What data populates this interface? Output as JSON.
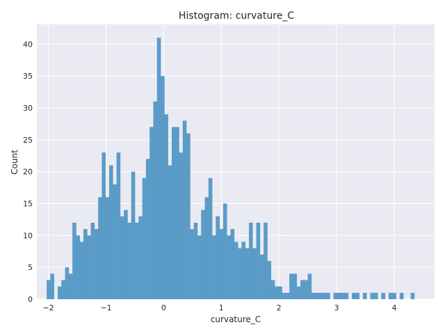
{
  "chart_data": {
    "type": "bar",
    "title": "Histogram: curvature_C",
    "xlabel": "curvature_C",
    "ylabel": "Count",
    "xlim": [
      -2.2,
      4.7
    ],
    "ylim": [
      0,
      43.1
    ],
    "xticks": [
      -2,
      -1,
      0,
      1,
      2,
      3,
      4
    ],
    "xtick_labels": [
      "−2",
      "−1",
      "0",
      "1",
      "2",
      "3",
      "4"
    ],
    "yticks": [
      0,
      5,
      10,
      15,
      20,
      25,
      30,
      35,
      40
    ],
    "ytick_labels": [
      "0",
      "5",
      "10",
      "15",
      "20",
      "25",
      "30",
      "35",
      "40"
    ],
    "grid": true,
    "bar_color": "#5b9bc8",
    "background": "#eaeaf2",
    "bin_start": -2.03,
    "bin_width": 0.0638,
    "counts": [
      3,
      4,
      0,
      2,
      3,
      5,
      4,
      12,
      10,
      9,
      11,
      10,
      12,
      11,
      16,
      23,
      16,
      21,
      18,
      23,
      13,
      14,
      12,
      20,
      12,
      13,
      19,
      22,
      27,
      31,
      41,
      35,
      29,
      21,
      27,
      27,
      23,
      28,
      26,
      11,
      12,
      10,
      14,
      16,
      19,
      10,
      13,
      11,
      15,
      10,
      11,
      9,
      8,
      9,
      8,
      12,
      8,
      12,
      7,
      12,
      6,
      3,
      2,
      2,
      1,
      1,
      4,
      4,
      2,
      3,
      3,
      4,
      1,
      1,
      1,
      1,
      1,
      0,
      1,
      1,
      1,
      1,
      0,
      1,
      1,
      0,
      1,
      0,
      1,
      1,
      0,
      1,
      0,
      1,
      1,
      0,
      1,
      0,
      0,
      1
    ]
  }
}
